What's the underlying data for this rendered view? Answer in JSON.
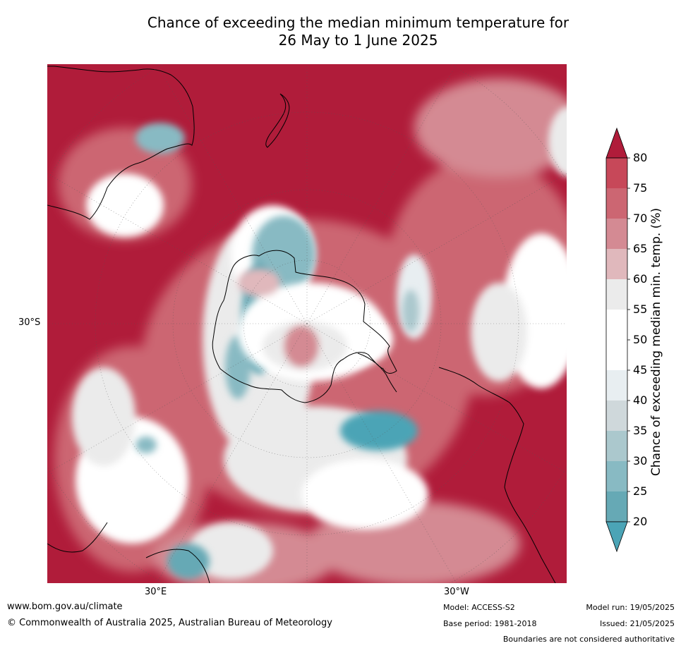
{
  "title_line1": "Chance of exceeding the median minimum temperature for",
  "title_line2": "26 May to 1 June 2025",
  "map_labels": {
    "lat_left": "30°S",
    "lon_bottom_left": "30°E",
    "lon_bottom_right": "30°W"
  },
  "colorbar": {
    "label": "Chance of exceeding median min. temp. (%)",
    "ticks": [
      "80",
      "75",
      "70",
      "65",
      "60",
      "55",
      "50",
      "45",
      "40",
      "35",
      "30",
      "25",
      "20"
    ],
    "colors": [
      "#b01c3a",
      "#c74859",
      "#cc6672",
      "#d48a93",
      "#e0b8bc",
      "#ebebeb",
      "#ffffff",
      "#ffffff",
      "#e8eef1",
      "#cfd8db",
      "#abc8cd",
      "#88bac3",
      "#66a9b5",
      "#4ba4b6"
    ],
    "top_arrow_color": "#b01c3a",
    "bottom_arrow_color": "#4ba4b6"
  },
  "footer": {
    "website": "www.bom.gov.au/climate",
    "copyright": "© Commonwealth of Australia 2025, Australian Bureau of Meteorology",
    "model": "Model: ACCESS-S2",
    "base_period": "Base period: 1981-2018",
    "model_run": "Model run: 19/05/2025",
    "issued": "Issued: 21/05/2025",
    "disclaimer": "Boundaries are not considered authoritative"
  }
}
